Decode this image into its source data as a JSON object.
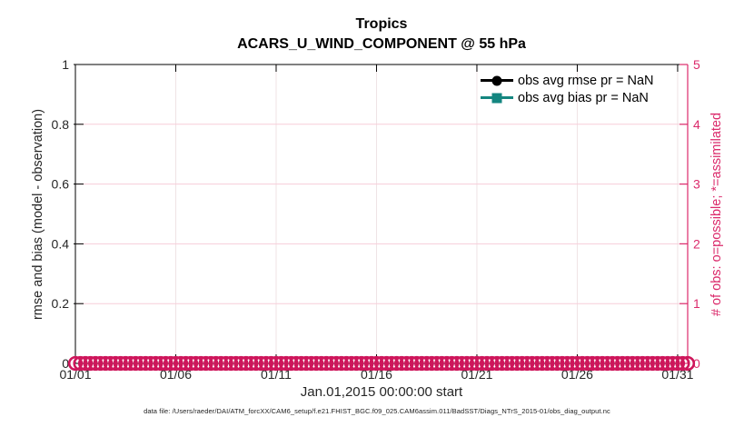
{
  "figure": {
    "title_line1": "Tropics",
    "title_line2": "ACARS_U_WIND_COMPONENT @ 55 hPa",
    "footer": "data file: /Users/raeder/DAI/ATM_forcXX/CAM6_setup/f.e21.FHIST_BGC.f09_025.CAM6assim.011/BadSST/Diags_NTrS_2015-01/obs_diag_output.nc"
  },
  "colors": {
    "crimson_axis": "#DB2A6B",
    "crimson_marker": "#CE165B",
    "teal": "#148680",
    "black": "#000000",
    "grid_horizontal": "#F7CDD9",
    "grid_vertical": "#EFE3E5",
    "tick_text": "#262626"
  },
  "legend": {
    "items": [
      {
        "label": "obs avg rmse pr = NaN",
        "color": "#000000",
        "marker": "circle"
      },
      {
        "label": "obs avg bias pr = NaN",
        "color": "#148680",
        "marker": "square"
      }
    ]
  },
  "chart_data": {
    "type": "line",
    "title": "Tropics",
    "subtitle": "ACARS_U_WIND_COMPONENT @ 55 hPa",
    "grid": true,
    "legend_position": "upper-right-inside",
    "x_axis": {
      "label": "Jan.01,2015 00:00:00 start",
      "tick_labels": [
        "01/01",
        "01/06",
        "01/11",
        "01/16",
        "01/21",
        "01/26",
        "01/31"
      ],
      "tick_days": [
        0,
        5,
        10,
        15,
        20,
        25,
        30
      ],
      "range_days": [
        0,
        30.5
      ]
    },
    "y_left": {
      "label": "rmse and bias (model - observation)",
      "ticks": [
        0,
        0.2,
        0.4,
        0.6,
        0.8,
        1
      ],
      "tick_labels": [
        "0",
        "0.2",
        "0.4",
        "0.6",
        "0.8",
        "1"
      ],
      "range": [
        0,
        1
      ]
    },
    "y_right": {
      "label": "# of obs: o=possible; *=assimilated",
      "ticks": [
        0,
        1,
        2,
        3,
        4,
        5
      ],
      "tick_labels": [
        "0",
        "1",
        "2",
        "3",
        "4",
        "5"
      ],
      "range": [
        0,
        5
      ]
    },
    "series": [
      {
        "name": "obs avg rmse pr = NaN",
        "axis": "left",
        "color": "#000000",
        "marker": "circle",
        "values": "NaN",
        "plotted": false
      },
      {
        "name": "obs avg bias pr = NaN",
        "axis": "left",
        "color": "#148680",
        "marker": "square",
        "values": "NaN",
        "plotted": false
      },
      {
        "name": "# of obs possible",
        "axis": "right",
        "color": "#CE165B",
        "marker": "o",
        "constant_value": 0,
        "points_per_day": 4,
        "plotted": true
      }
    ]
  }
}
